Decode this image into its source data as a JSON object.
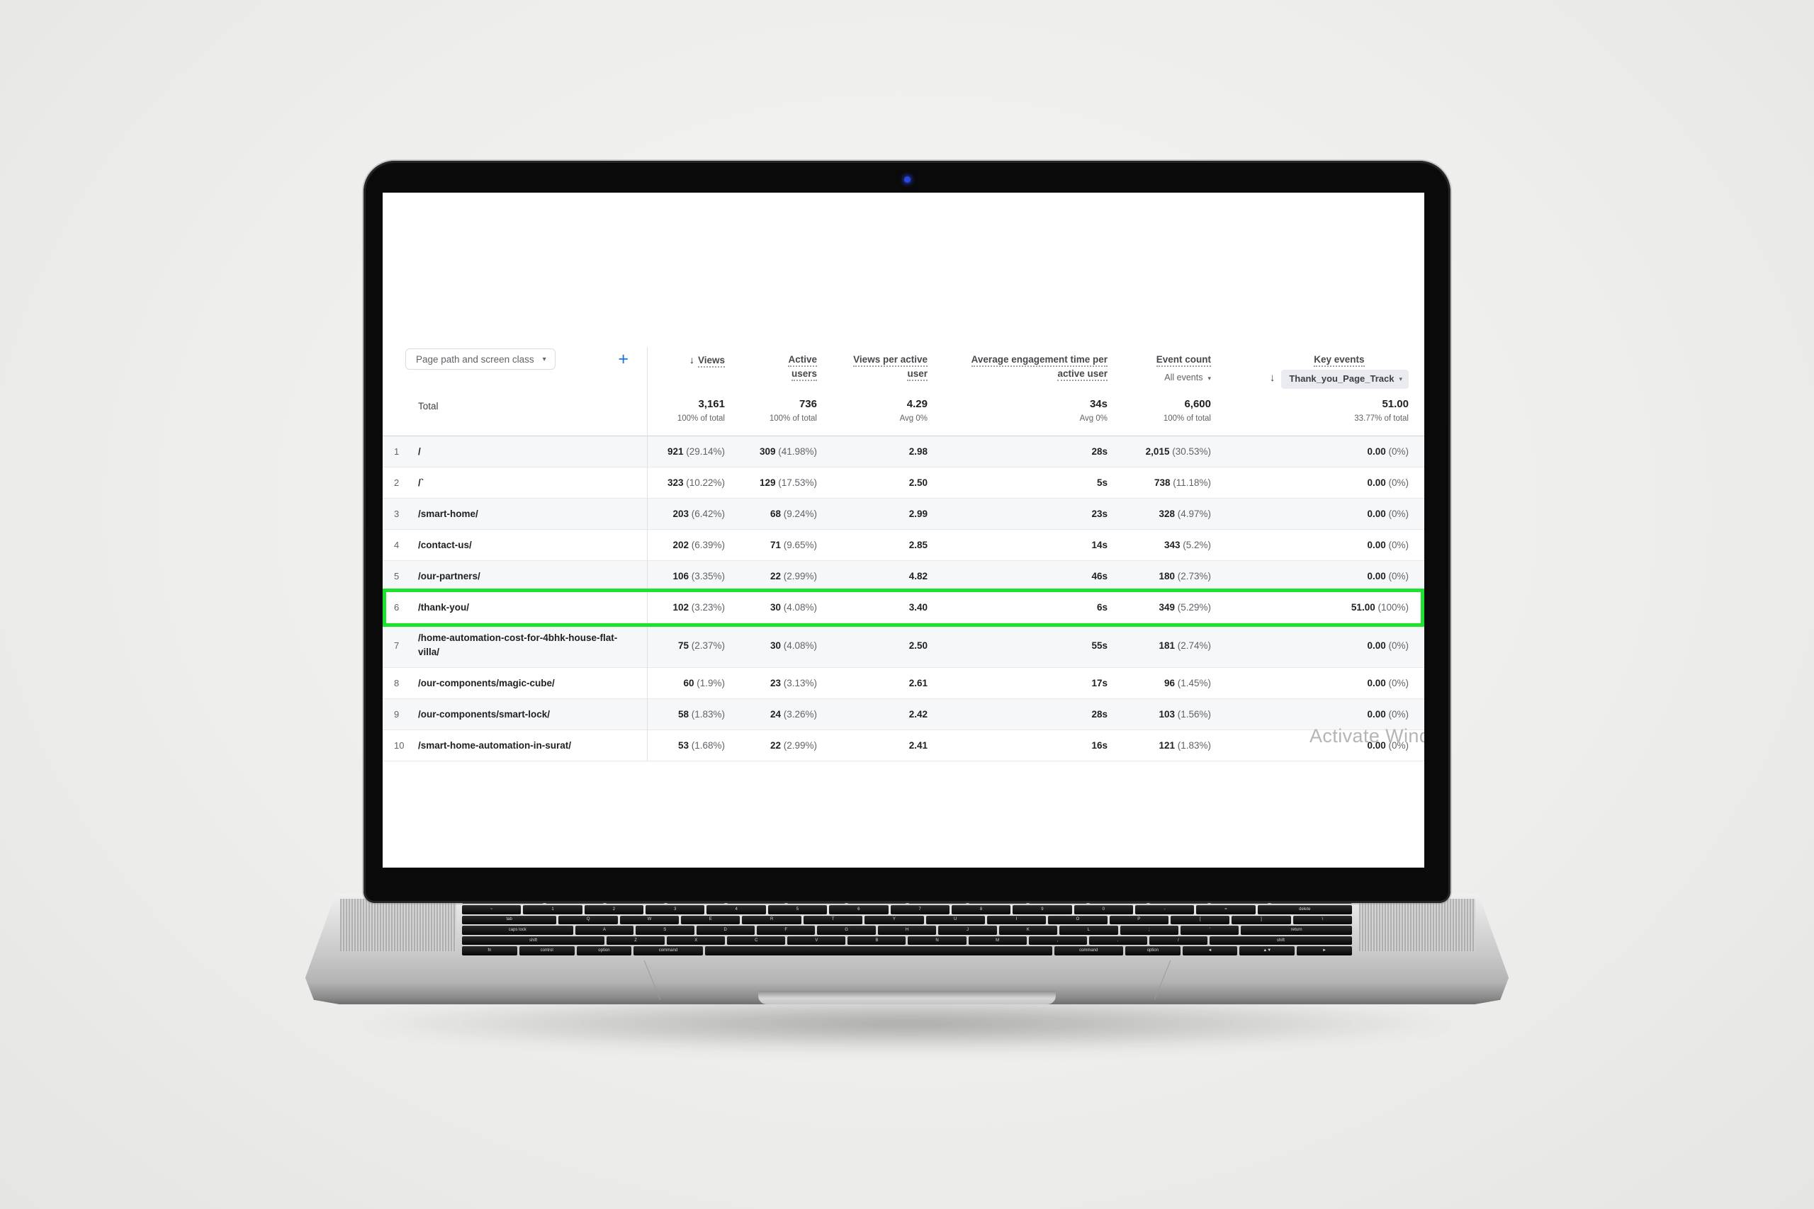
{
  "colors": {
    "highlight_green": "#1ee32e",
    "accent_blue": "#1a73e8",
    "webcam_blue": "#2947e0"
  },
  "icons": {
    "caret_down": "▾",
    "sort_arrow": "↓",
    "plus": "+"
  },
  "watermark": "Activate Windows",
  "analytics_table": {
    "dimension_dropdown": "Page path and screen class",
    "columns": {
      "views": {
        "line2": "Views",
        "sorted": true
      },
      "active_users": {
        "line1": "Active",
        "line2": "users"
      },
      "views_per_active_user": {
        "line1": "Views per active",
        "line2": "user"
      },
      "avg_engagement": {
        "line1": "Average engagement time per",
        "line2": "active user"
      },
      "event_count": {
        "line2": "Event count",
        "filter": "All events"
      },
      "key_events": {
        "line2": "Key events",
        "filter": "Thank_you_Page_Track"
      }
    },
    "totals": {
      "label": "Total",
      "views": {
        "value": "3,161",
        "sub": "100% of total"
      },
      "active_users": {
        "value": "736",
        "sub": "100% of total"
      },
      "views_per_active_user": {
        "value": "4.29",
        "sub": "Avg 0%"
      },
      "avg_engagement": {
        "value": "34s",
        "sub": "Avg 0%"
      },
      "event_count": {
        "value": "6,600",
        "sub": "100% of total"
      },
      "key_events": {
        "value": "51.00",
        "sub": "33.77% of total"
      }
    },
    "rows": [
      {
        "num": "1",
        "path": "/",
        "views": [
          "921",
          "29.14%"
        ],
        "active_users": [
          "309",
          "41.98%"
        ],
        "views_per_active_user": "2.98",
        "avg_engagement": "28s",
        "event_count": [
          "2,015",
          "30.53%"
        ],
        "key_events": [
          "0.00",
          "0%"
        ],
        "highlighted": false
      },
      {
        "num": "2",
        "path": "/`",
        "views": [
          "323",
          "10.22%"
        ],
        "active_users": [
          "129",
          "17.53%"
        ],
        "views_per_active_user": "2.50",
        "avg_engagement": "5s",
        "event_count": [
          "738",
          "11.18%"
        ],
        "key_events": [
          "0.00",
          "0%"
        ],
        "highlighted": false
      },
      {
        "num": "3",
        "path": "/smart-home/",
        "views": [
          "203",
          "6.42%"
        ],
        "active_users": [
          "68",
          "9.24%"
        ],
        "views_per_active_user": "2.99",
        "avg_engagement": "23s",
        "event_count": [
          "328",
          "4.97%"
        ],
        "key_events": [
          "0.00",
          "0%"
        ],
        "highlighted": false
      },
      {
        "num": "4",
        "path": "/contact-us/",
        "views": [
          "202",
          "6.39%"
        ],
        "active_users": [
          "71",
          "9.65%"
        ],
        "views_per_active_user": "2.85",
        "avg_engagement": "14s",
        "event_count": [
          "343",
          "5.2%"
        ],
        "key_events": [
          "0.00",
          "0%"
        ],
        "highlighted": false
      },
      {
        "num": "5",
        "path": "/our-partners/",
        "views": [
          "106",
          "3.35%"
        ],
        "active_users": [
          "22",
          "2.99%"
        ],
        "views_per_active_user": "4.82",
        "avg_engagement": "46s",
        "event_count": [
          "180",
          "2.73%"
        ],
        "key_events": [
          "0.00",
          "0%"
        ],
        "highlighted": false
      },
      {
        "num": "6",
        "path": "/thank-you/",
        "views": [
          "102",
          "3.23%"
        ],
        "active_users": [
          "30",
          "4.08%"
        ],
        "views_per_active_user": "3.40",
        "avg_engagement": "6s",
        "event_count": [
          "349",
          "5.29%"
        ],
        "key_events": [
          "51.00",
          "100%"
        ],
        "highlighted": true
      },
      {
        "num": "7",
        "path": "/home-automation-cost-for-4bhk-house-flat-villa/",
        "views": [
          "75",
          "2.37%"
        ],
        "active_users": [
          "30",
          "4.08%"
        ],
        "views_per_active_user": "2.50",
        "avg_engagement": "55s",
        "event_count": [
          "181",
          "2.74%"
        ],
        "key_events": [
          "0.00",
          "0%"
        ],
        "highlighted": false
      },
      {
        "num": "8",
        "path": "/our-components/magic-cube/",
        "views": [
          "60",
          "1.9%"
        ],
        "active_users": [
          "23",
          "3.13%"
        ],
        "views_per_active_user": "2.61",
        "avg_engagement": "17s",
        "event_count": [
          "96",
          "1.45%"
        ],
        "key_events": [
          "0.00",
          "0%"
        ],
        "highlighted": false
      },
      {
        "num": "9",
        "path": "/our-components/smart-lock/",
        "views": [
          "58",
          "1.83%"
        ],
        "active_users": [
          "24",
          "3.26%"
        ],
        "views_per_active_user": "2.42",
        "avg_engagement": "28s",
        "event_count": [
          "103",
          "1.56%"
        ],
        "key_events": [
          "0.00",
          "0%"
        ],
        "highlighted": false
      },
      {
        "num": "10",
        "path": "/smart-home-automation-in-surat/",
        "views": [
          "53",
          "1.68%"
        ],
        "active_users": [
          "22",
          "2.99%"
        ],
        "views_per_active_user": "2.41",
        "avg_engagement": "16s",
        "event_count": [
          "121",
          "1.83%"
        ],
        "key_events": [
          "0.00",
          "0%"
        ],
        "highlighted": false
      }
    ]
  },
  "keyboard": {
    "rows": [
      {
        "fn": true,
        "keys": [
          [
            "esc",
            1.4
          ],
          [
            "F1",
            1
          ],
          [
            "F2",
            1
          ],
          [
            "F3",
            1
          ],
          [
            "F4",
            1
          ],
          [
            "F5",
            1
          ],
          [
            "F6",
            1
          ],
          [
            "F7",
            1
          ],
          [
            "F8",
            1
          ],
          [
            "F9",
            1
          ],
          [
            "F10",
            1
          ],
          [
            "F11",
            1
          ],
          [
            "F12",
            1
          ],
          [
            "pwr",
            1.4
          ]
        ]
      },
      {
        "fn": false,
        "keys": [
          [
            "~",
            1
          ],
          [
            "1",
            1
          ],
          [
            "2",
            1
          ],
          [
            "3",
            1
          ],
          [
            "4",
            1
          ],
          [
            "5",
            1
          ],
          [
            "6",
            1
          ],
          [
            "7",
            1
          ],
          [
            "8",
            1
          ],
          [
            "9",
            1
          ],
          [
            "0",
            1
          ],
          [
            "-",
            1
          ],
          [
            "=",
            1
          ],
          [
            "delete",
            1.6
          ]
        ]
      },
      {
        "fn": false,
        "keys": [
          [
            "tab",
            1.6
          ],
          [
            "Q",
            1
          ],
          [
            "W",
            1
          ],
          [
            "E",
            1
          ],
          [
            "R",
            1
          ],
          [
            "T",
            1
          ],
          [
            "Y",
            1
          ],
          [
            "U",
            1
          ],
          [
            "I",
            1
          ],
          [
            "O",
            1
          ],
          [
            "P",
            1
          ],
          [
            "[",
            1
          ],
          [
            "]",
            1
          ],
          [
            "\\",
            1
          ]
        ]
      },
      {
        "fn": false,
        "keys": [
          [
            "caps lock",
            1.9
          ],
          [
            "A",
            1
          ],
          [
            "S",
            1
          ],
          [
            "D",
            1
          ],
          [
            "F",
            1
          ],
          [
            "G",
            1
          ],
          [
            "H",
            1
          ],
          [
            "J",
            1
          ],
          [
            "K",
            1
          ],
          [
            "L",
            1
          ],
          [
            ";",
            1
          ],
          [
            "'",
            1
          ],
          [
            "return",
            1.9
          ]
        ]
      },
      {
        "fn": false,
        "keys": [
          [
            "shift",
            2.45
          ],
          [
            "Z",
            1
          ],
          [
            "X",
            1
          ],
          [
            "C",
            1
          ],
          [
            "V",
            1
          ],
          [
            "B",
            1
          ],
          [
            "N",
            1
          ],
          [
            "M",
            1
          ],
          [
            ",",
            1
          ],
          [
            ".",
            1
          ],
          [
            "/",
            1
          ],
          [
            "shift",
            2.45
          ]
        ]
      },
      {
        "fn": false,
        "keys": [
          [
            "fn",
            1
          ],
          [
            "control",
            1
          ],
          [
            "option",
            1
          ],
          [
            "command",
            1.25
          ],
          [
            "",
            6.3
          ],
          [
            "command",
            1.25
          ],
          [
            "option",
            1
          ],
          [
            "◄",
            1
          ],
          [
            "▲▼",
            1
          ],
          [
            "►",
            1
          ]
        ]
      }
    ]
  }
}
